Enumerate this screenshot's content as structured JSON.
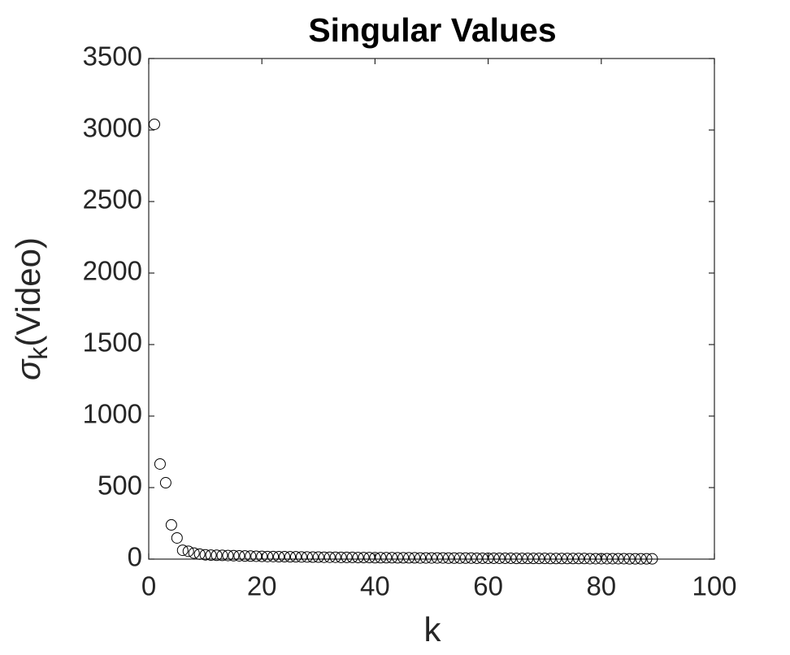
{
  "chart_data": {
    "type": "scatter",
    "title": "Singular Values",
    "xlabel": "k",
    "ylabel": {
      "symbol": "σ",
      "subscript": "k",
      "text": "(Video)"
    },
    "marker": "circle-open",
    "color": "#000000",
    "grid": false,
    "xlim": [
      0,
      100
    ],
    "xticks": [
      0,
      20,
      40,
      60,
      80,
      100
    ],
    "ylim": [
      0,
      3500
    ],
    "yticks": [
      0,
      500,
      1000,
      1500,
      2000,
      2500,
      3000,
      3500
    ],
    "x": [
      1,
      2,
      3,
      4,
      5,
      6,
      7,
      8,
      9,
      10,
      11,
      12,
      13,
      14,
      15,
      16,
      17,
      18,
      19,
      20,
      21,
      22,
      23,
      24,
      25,
      26,
      27,
      28,
      29,
      30,
      31,
      32,
      33,
      34,
      35,
      36,
      37,
      38,
      39,
      40,
      41,
      42,
      43,
      44,
      45,
      46,
      47,
      48,
      49,
      50,
      51,
      52,
      53,
      54,
      55,
      56,
      57,
      58,
      59,
      60,
      61,
      62,
      63,
      64,
      65,
      66,
      67,
      68,
      69,
      70,
      71,
      72,
      73,
      74,
      75,
      76,
      77,
      78,
      79,
      80,
      81,
      82,
      83,
      84,
      85,
      86,
      87,
      88,
      89
    ],
    "values": [
      3040,
      665,
      534,
      239,
      148,
      62,
      55,
      42,
      35,
      30,
      28,
      27,
      26,
      25,
      24,
      23,
      22,
      21,
      20,
      19,
      18,
      18,
      17,
      17,
      16,
      16,
      15,
      15,
      14,
      14,
      13,
      13,
      13,
      12,
      12,
      12,
      11,
      11,
      11,
      10,
      10,
      10,
      10,
      9,
      9,
      9,
      9,
      8,
      8,
      8,
      8,
      8,
      7,
      7,
      7,
      7,
      7,
      6,
      6,
      6,
      6,
      6,
      6,
      6,
      5,
      5,
      5,
      5,
      5,
      5,
      4,
      4,
      4,
      4,
      4,
      4,
      4,
      3,
      3,
      3,
      3,
      3,
      3,
      3,
      2,
      2,
      2,
      2,
      2
    ]
  }
}
